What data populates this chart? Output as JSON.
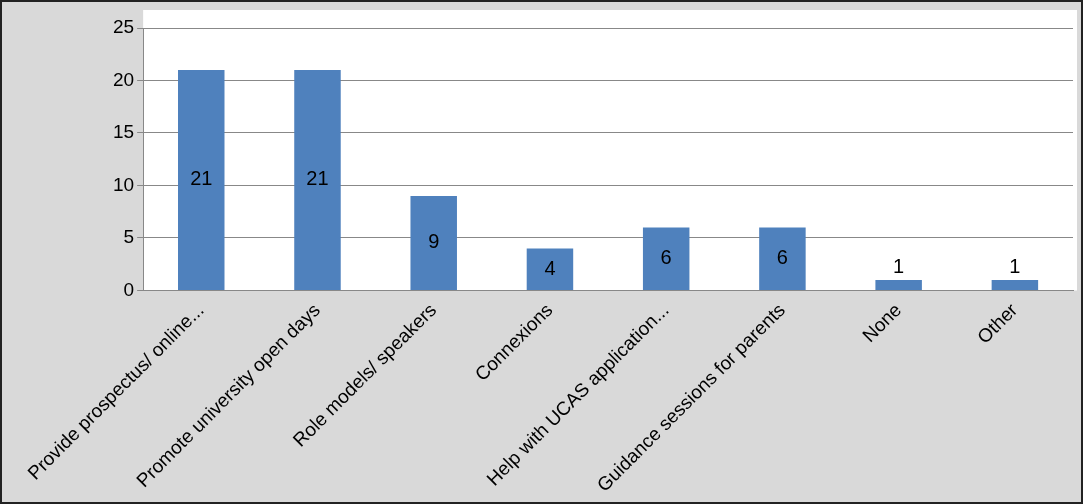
{
  "chart_data": {
    "type": "bar",
    "categories": [
      "Provide prospectus/ online...",
      "Promote university open days",
      "Role models/ speakers",
      "Connexions",
      "Help with UCAS application...",
      "Guidance sessions for parents",
      "None",
      "Other"
    ],
    "values": [
      21,
      21,
      9,
      4,
      6,
      6,
      1,
      1
    ],
    "color": "#4f81bd",
    "ylim": [
      0,
      25
    ],
    "yticks": [
      0,
      5,
      10,
      15,
      20,
      25
    ],
    "grid": "y",
    "legend": false,
    "data_labels": true
  }
}
